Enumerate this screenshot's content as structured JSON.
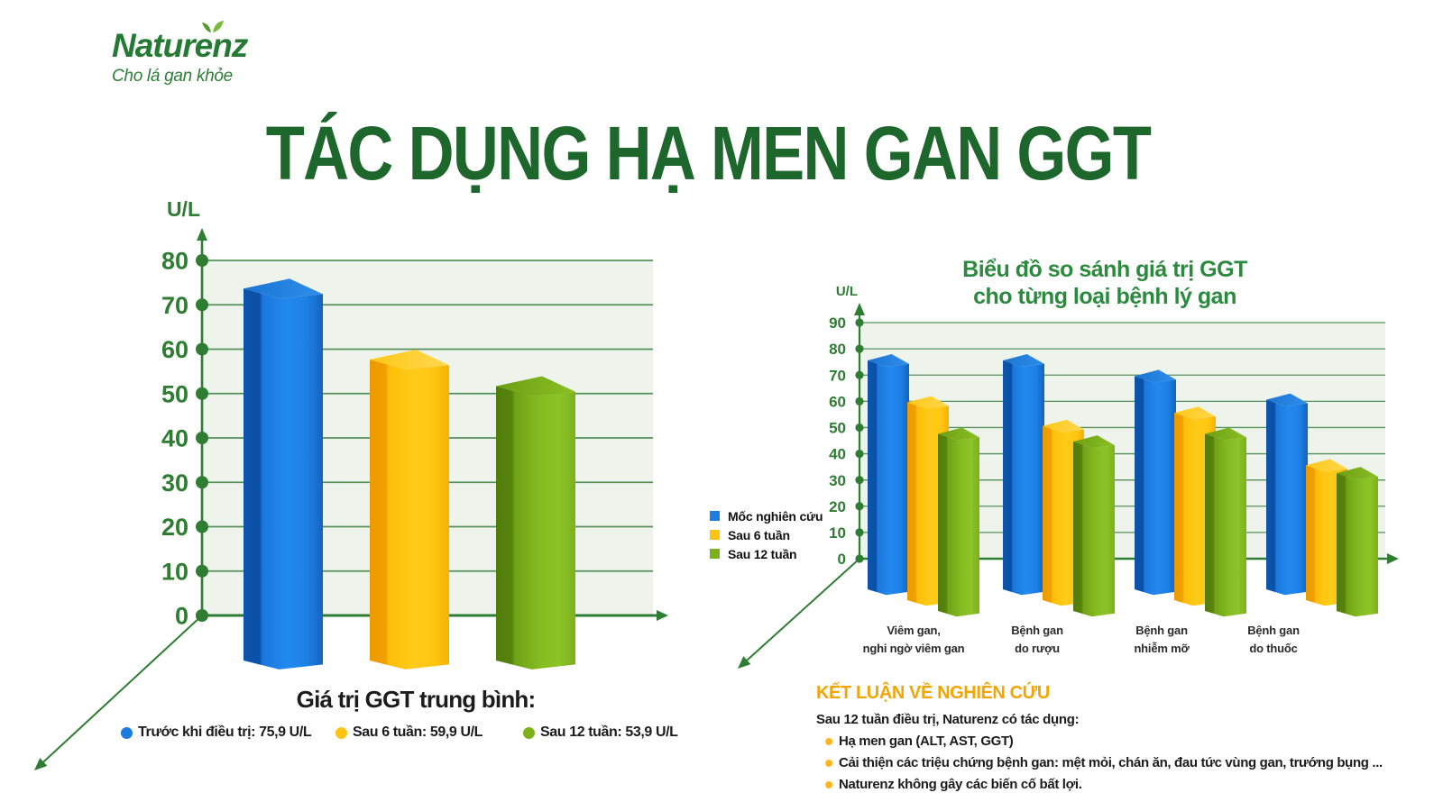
{
  "brand": {
    "name": "Naturenz",
    "tagline": "Cho lá gan khỏe"
  },
  "title": "TÁC DỤNG HẠ MEN GAN GGT",
  "colors": {
    "title_green": "#1d672c",
    "axis_green": "#2e7d32",
    "grid_green": "#3e7f44",
    "plot_bg": "#eef4ec",
    "chart_title_green": "#2c8a3e",
    "heading_orange": "#f2a505",
    "bullet_yellow": "#ffb81c",
    "bar_blue": "#1e7ce0",
    "bar_yellow": "#ffc413",
    "bar_green": "#7cb11c"
  },
  "chart_data": [
    {
      "type": "bar",
      "style": "3d",
      "unit_label": "U/L",
      "ylabel": "U/L",
      "ylim": [
        0,
        80
      ],
      "ytick_step": 10,
      "grid": true,
      "series": [
        {
          "name": "Trước khi điều trị",
          "color_key": "blue",
          "values": [
            75.9
          ]
        },
        {
          "name": "Sau 6 tuần",
          "color_key": "yellow",
          "values": [
            59.9
          ]
        },
        {
          "name": "Sau 12 tuần",
          "color_key": "green",
          "values": [
            53.9
          ]
        }
      ],
      "legend": {
        "title": "Giá trị GGT trung bình:",
        "items": [
          {
            "label": "Trước khi điều trị: 75,9 U/L",
            "color": "#1e7ce0"
          },
          {
            "label": "Sau 6 tuần: 59,9 U/L",
            "color": "#ffc413"
          },
          {
            "label": "Sau 12 tuần: 53,9 U/L",
            "color": "#7cb11c"
          }
        ]
      }
    },
    {
      "type": "bar",
      "style": "3d",
      "title": "Biểu đồ so sánh giá trị GGT cho từng loại bệnh lý gan",
      "title_lines": [
        "Biểu đồ so sánh giá trị GGT",
        "cho từng loại bệnh lý gan"
      ],
      "unit_label": "U/L",
      "ylabel": "U/L",
      "ylim": [
        0,
        90
      ],
      "ytick_step": 10,
      "grid": true,
      "categories": [
        "Viêm gan, nghi ngờ viêm gan",
        "Bệnh gan do rượu",
        "Bệnh gan nhiễm mỡ",
        "Bệnh gan do thuốc"
      ],
      "categories_lines": [
        [
          "Viêm gan,",
          "nghi ngờ viêm gan"
        ],
        [
          "Bệnh gan",
          "do rượu"
        ],
        [
          "Bệnh gan",
          "nhiễm mỡ"
        ],
        [
          "Bệnh gan",
          "do thuốc"
        ]
      ],
      "series": [
        {
          "name": "Mốc nghiên cứu",
          "color_key": "blue",
          "values": [
            78,
            78,
            72,
            63
          ]
        },
        {
          "name": "Sau 6 tuần",
          "color_key": "yellow",
          "values": [
            62,
            53,
            58,
            38
          ]
        },
        {
          "name": "Sau 12 tuần",
          "color_key": "green",
          "values": [
            50,
            47,
            50,
            35
          ]
        }
      ],
      "legend": {
        "position": "left",
        "items": [
          {
            "label": "Mốc nghiên cứu",
            "color": "#1e7ce0"
          },
          {
            "label": "Sau 6 tuần",
            "color": "#ffc413"
          },
          {
            "label": "Sau 12 tuần",
            "color": "#7cb11c"
          }
        ]
      }
    }
  ],
  "conclusion": {
    "heading": "KẾT LUẬN VỀ NGHIÊN CỨU",
    "intro": "Sau 12 tuần điều trị, Naturenz có tác dụng:",
    "bullets": [
      "Hạ men gan (ALT, AST, GGT)",
      "Cải thiện các triệu chứng bệnh gan: mệt mỏi, chán ăn, đau tức vùng gan, trướng bụng ...",
      "Naturenz không gây các biến cố bất lợi."
    ]
  }
}
